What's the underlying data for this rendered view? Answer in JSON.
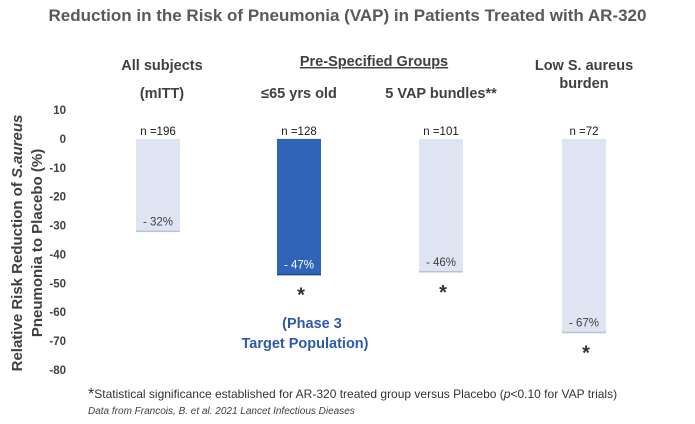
{
  "title": "Reduction in the Risk of Pneumonia (VAP) in Patients Treated with AR-320",
  "pre_specified_label": "Pre-Specified Groups",
  "ylabel_line1": "Relative Risk Reduction of ",
  "ylabel_italic": "S.aureus",
  "ylabel_line2": "Pneumonia to Placebo (%)",
  "annotation_line1": "(Phase 3",
  "annotation_line2": "Target Population)",
  "footnote": {
    "asterisk": "*",
    "text_before": "Statistical significance established for AR-320 treated group versus Placebo (",
    "p_italic": "p",
    "text_after": "<0.10 for VAP trials)",
    "source": "Data from Francois, B. et al. 2021 Lancet Infectious Dieases"
  },
  "colors": {
    "highlight_bar": "#2f64b8",
    "light_bar": "#dfe4f3",
    "annotation": "#2f5aa8"
  },
  "chart_data": {
    "type": "bar",
    "categories": [
      "All subjects (mITT)",
      "≤65 yrs old",
      "5 VAP bundles**",
      "Low S. aureus burden"
    ],
    "group_label_lines": [
      [
        "All subjects",
        "(mITT)"
      ],
      [
        "≤65 yrs old"
      ],
      [
        "5 VAP bundles**"
      ],
      [
        "Low S. aureus",
        "burden"
      ]
    ],
    "values": [
      -32,
      -47,
      -46,
      -67
    ],
    "value_labels": [
      "- 32%",
      "- 47%",
      "- 46%",
      "- 67%"
    ],
    "n_labels": [
      "n =196",
      "n =128",
      "n =101",
      "n =72"
    ],
    "significant": [
      false,
      true,
      true,
      true
    ],
    "highlight": [
      false,
      true,
      false,
      false
    ],
    "ylim": [
      -80,
      10
    ],
    "yticks": [
      10,
      0,
      -10,
      -20,
      -30,
      -40,
      -50,
      -60,
      -70,
      -80
    ],
    "grid": false
  }
}
